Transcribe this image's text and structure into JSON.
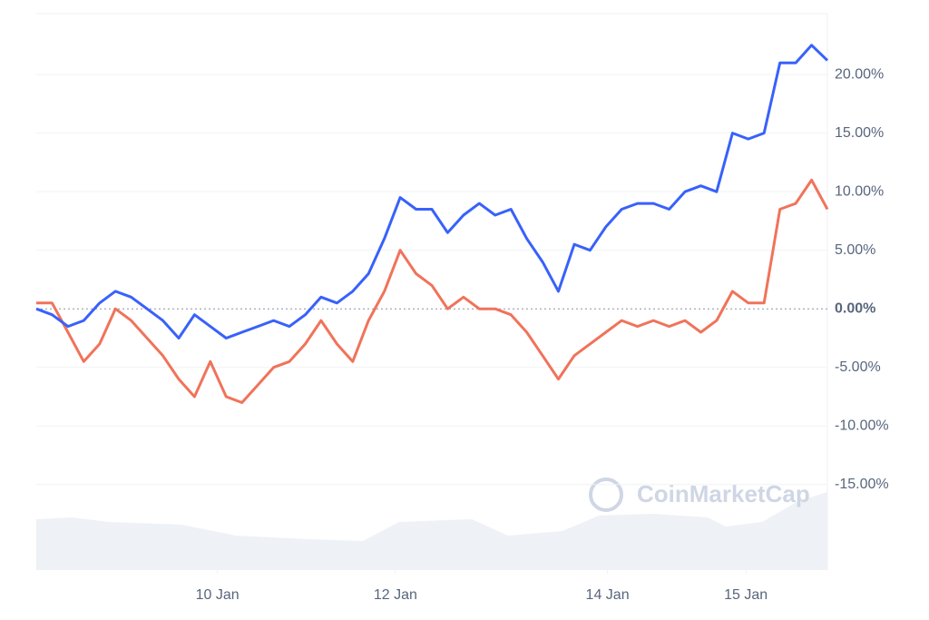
{
  "chart_data": {
    "type": "line",
    "x": [
      0,
      2,
      4,
      6,
      8,
      10,
      12,
      14,
      16,
      18,
      20,
      22,
      24,
      26,
      28,
      30,
      32,
      34,
      36,
      38,
      40,
      42,
      44,
      46,
      48,
      50,
      52,
      54,
      56,
      58,
      60,
      62,
      64,
      66,
      68,
      70,
      72,
      74,
      76,
      78,
      80,
      82,
      84,
      86,
      88,
      90,
      92,
      94,
      96,
      98,
      100
    ],
    "xlim": [
      0,
      100
    ],
    "xticks": [
      {
        "value": 22.9,
        "label": "10 Jan"
      },
      {
        "value": 45.4,
        "label": "12 Jan"
      },
      {
        "value": 72.2,
        "label": "14 Jan"
      },
      {
        "value": 89.7,
        "label": "15 Jan"
      }
    ],
    "ylim": [
      -22.3,
      25.2
    ],
    "yticks": [
      {
        "value": -15,
        "label": "-15.00%"
      },
      {
        "value": -10,
        "label": "-10.00%"
      },
      {
        "value": -5,
        "label": "-5.00%"
      },
      {
        "value": 0,
        "label": "0.00%"
      },
      {
        "value": 5,
        "label": "5.00%"
      },
      {
        "value": 10,
        "label": "10.00%"
      },
      {
        "value": 15,
        "label": "15.00%"
      },
      {
        "value": 20,
        "label": "20.00%"
      }
    ],
    "grid": true,
    "zero_line": true,
    "watermark": "CoinMarketCap",
    "series": [
      {
        "color": "#3861fb",
        "values": [
          0,
          -0.5,
          -1.5,
          -1,
          0.5,
          1.5,
          1,
          0,
          -1,
          -2.5,
          -0.5,
          -1.5,
          -2.5,
          -2,
          -1.5,
          -1,
          -1.5,
          -0.5,
          1,
          0.5,
          1.5,
          3,
          6,
          9.5,
          8.5,
          8.5,
          6.5,
          8,
          9,
          8,
          8.5,
          6,
          4,
          1.5,
          5.5,
          5,
          7,
          8.5,
          9,
          9,
          8.5,
          10,
          10.5,
          10,
          15,
          14.5,
          15,
          21,
          21,
          22.5,
          21.2
        ]
      },
      {
        "color": "#f0735a",
        "values": [
          0.5,
          0.5,
          -2,
          -4.5,
          -3,
          0,
          -1,
          -2.5,
          -4,
          -6,
          -7.5,
          -4.5,
          -7.5,
          -8,
          -6.5,
          -5,
          -4.5,
          -3,
          -1,
          -3,
          -4.5,
          -1,
          1.5,
          5,
          3,
          2,
          0,
          1,
          0,
          0,
          -0.5,
          -2,
          -4,
          -6,
          -4,
          -3,
          -2,
          -1,
          -1.5,
          -1,
          -1.5,
          -1,
          -2,
          -1,
          1.5,
          0.5,
          0.5,
          8.5,
          9,
          11,
          8.5
        ]
      }
    ]
  }
}
